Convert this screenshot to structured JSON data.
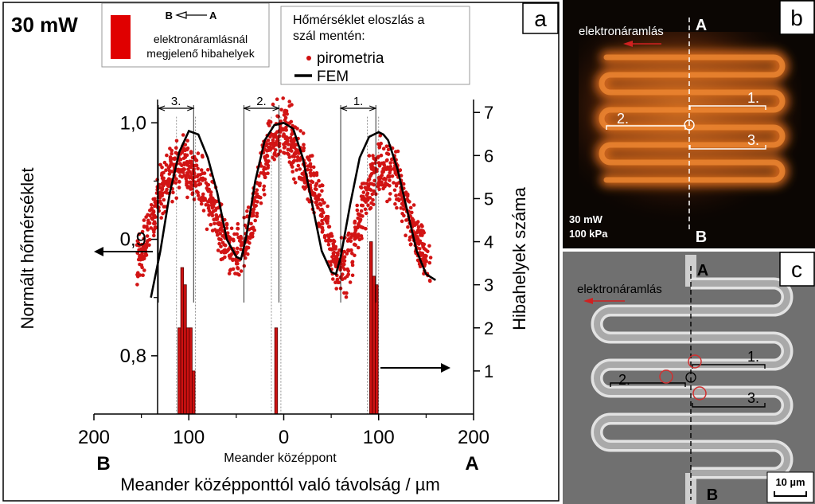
{
  "panel_a": {
    "letter": "a",
    "power_label": "30 mW",
    "legend_defects": {
      "arrow_from": "B",
      "arrow_to": "A",
      "line1": "elektronáramlásnál",
      "line2": "megjelenő hibahelyek",
      "swatch_color": "#e00000"
    },
    "legend_temp": {
      "title_line1": "Hőmérséklet eloszlás a",
      "title_line2": "szál mentén:",
      "series_points": "pirometria",
      "series_line": "FEM"
    },
    "region_labels": [
      "3.",
      "2.",
      "1."
    ],
    "left_end": "B",
    "right_end": "A",
    "center_label": "Meander középpont",
    "xlabel": "Meander középponttól való távolság / µm",
    "ylabel_left": "Normált hőmérséklet",
    "ylabel_right": "Hibahelyek száma"
  },
  "chart_data": {
    "type": "scatter",
    "x_tick_labels": [
      "200",
      "100",
      "0",
      "100",
      "200"
    ],
    "x_tick_values": [
      -200,
      -100,
      0,
      100,
      200
    ],
    "xlim": [
      -200,
      200
    ],
    "ylim_left": [
      0.75,
      1.02
    ],
    "left_ticks": [
      0.8,
      0.9,
      1.0
    ],
    "left_tick_labels": [
      "0,8",
      "0,9",
      "1,0"
    ],
    "ylim_right": [
      0,
      7.3
    ],
    "right_ticks": [
      1,
      2,
      3,
      4,
      5,
      6,
      7
    ],
    "grid": false,
    "fem": {
      "name": "FEM",
      "x": [
        -140,
        -130,
        -120,
        -110,
        -100,
        -90,
        -80,
        -70,
        -60,
        -50,
        -45,
        -40,
        -30,
        -20,
        -10,
        0,
        10,
        20,
        30,
        40,
        50,
        55,
        60,
        70,
        80,
        90,
        100,
        105,
        110,
        120,
        130,
        140,
        150,
        160
      ],
      "y": [
        0.85,
        0.89,
        0.94,
        0.975,
        0.993,
        0.99,
        0.97,
        0.94,
        0.9,
        0.885,
        0.883,
        0.9,
        0.95,
        0.985,
        0.998,
        1.0,
        0.995,
        0.97,
        0.93,
        0.89,
        0.872,
        0.87,
        0.885,
        0.93,
        0.97,
        0.988,
        0.992,
        0.99,
        0.985,
        0.96,
        0.925,
        0.89,
        0.87,
        0.865
      ]
    },
    "pyrometry_trend": {
      "name": "pirometria",
      "x": [
        -155,
        -145,
        -135,
        -125,
        -115,
        -105,
        -95,
        -85,
        -75,
        -65,
        -55,
        -45,
        -35,
        -25,
        -15,
        -5,
        5,
        15,
        25,
        35,
        45,
        55,
        65,
        75,
        85,
        95,
        105,
        115,
        125,
        135,
        145,
        155
      ],
      "y": [
        0.88,
        0.9,
        0.925,
        0.95,
        0.96,
        0.965,
        0.955,
        0.945,
        0.925,
        0.905,
        0.89,
        0.885,
        0.91,
        0.95,
        0.98,
        0.995,
        0.99,
        0.975,
        0.955,
        0.935,
        0.91,
        0.88,
        0.875,
        0.9,
        0.935,
        0.955,
        0.965,
        0.96,
        0.94,
        0.91,
        0.89,
        0.875
      ],
      "spread": 0.022
    },
    "defects": {
      "x": [
        -110,
        -107,
        -104,
        -101,
        -98,
        -95,
        -8,
        92,
        95,
        98
      ],
      "counts": [
        2,
        3.4,
        3,
        2,
        2,
        1,
        2,
        4,
        3.2,
        3
      ]
    },
    "regions": [
      {
        "label": "3.",
        "x1": -132,
        "x2": -95
      },
      {
        "label": "2.",
        "x1": -42,
        "x2": -5
      },
      {
        "label": "1.",
        "x1": 60,
        "x2": 97
      }
    ]
  },
  "panel_b": {
    "letter": "b",
    "flow_label": "elektronáramlás",
    "top_label": "A",
    "bottom_label": "B",
    "params_line1": "30 mW",
    "params_line2": "100 kPa",
    "labels": [
      "1.",
      "2.",
      "3."
    ]
  },
  "panel_c": {
    "letter": "c",
    "flow_label": "elektronáramlás",
    "top_label": "A",
    "bottom_label": "B",
    "scale_label": "10 µm",
    "labels": [
      "1.",
      "2.",
      "3."
    ]
  }
}
